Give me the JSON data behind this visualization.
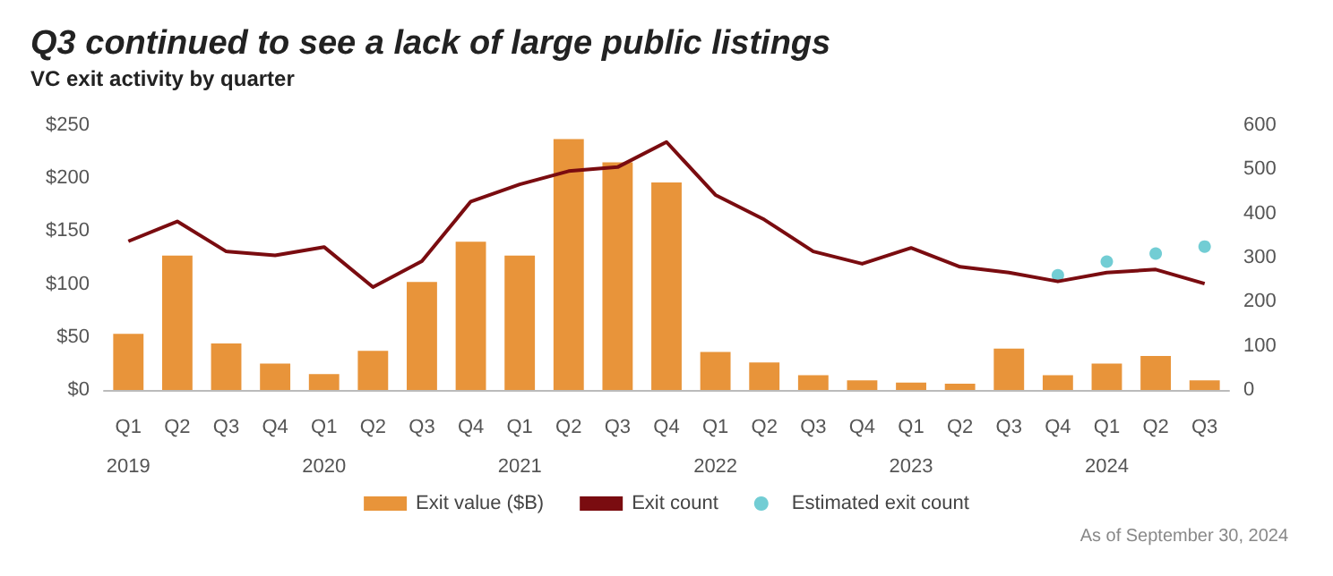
{
  "chart_data": {
    "type": "bar",
    "title": "Q3 continued to see a lack of large public listings",
    "subtitle": "VC exit activity by quarter",
    "categories": [
      "Q1\n2019",
      "Q2",
      "Q3",
      "Q4",
      "Q1\n2020",
      "Q2",
      "Q3",
      "Q4",
      "Q1\n2021",
      "Q2",
      "Q3",
      "Q4",
      "Q1\n2022",
      "Q2",
      "Q3",
      "Q4",
      "Q1\n2023",
      "Q2",
      "Q3",
      "Q4",
      "Q1\n2024",
      "Q2",
      "Q3"
    ],
    "series": [
      {
        "name": "Exit value ($B)",
        "color": "#e8943a",
        "values": [
          53,
          127,
          44,
          25,
          15,
          37,
          102,
          140,
          127,
          237,
          215,
          196,
          36,
          26,
          14,
          9,
          7,
          6,
          39,
          14,
          25,
          32,
          9
        ]
      },
      {
        "name": "Exit count",
        "type": "line",
        "axis": "y2",
        "color": "#7a0c10",
        "values": [
          337,
          382,
          314,
          305,
          324,
          233,
          292,
          427,
          466,
          496,
          505,
          562,
          442,
          386,
          314,
          286,
          322,
          279,
          266,
          246,
          266,
          273,
          241
        ]
      },
      {
        "name": "Estimated exit count",
        "type": "scatter",
        "axis": "y2",
        "marker": "circle",
        "color": "#4fc1c9",
        "values": [
          null,
          null,
          null,
          null,
          null,
          null,
          null,
          null,
          null,
          null,
          null,
          null,
          null,
          null,
          null,
          null,
          null,
          null,
          null,
          260,
          291,
          309,
          325
        ]
      }
    ],
    "ylim": [
      0,
      250
    ],
    "yticks": [
      {
        "value": 0,
        "label": "$0"
      },
      {
        "value": 50,
        "label": "$50"
      },
      {
        "value": 100,
        "label": "$100"
      },
      {
        "value": 150,
        "label": "$150"
      },
      {
        "value": 200,
        "label": "$200"
      },
      {
        "value": 250,
        "label": "$250"
      }
    ],
    "y2lim": [
      0,
      600
    ],
    "y2ticks": [
      0,
      100,
      200,
      300,
      400,
      500,
      600
    ],
    "grid": false,
    "legend": "bottom",
    "marker": "none",
    "line_style": "solid",
    "annotations": [
      "As of September 30, 2024"
    ]
  }
}
